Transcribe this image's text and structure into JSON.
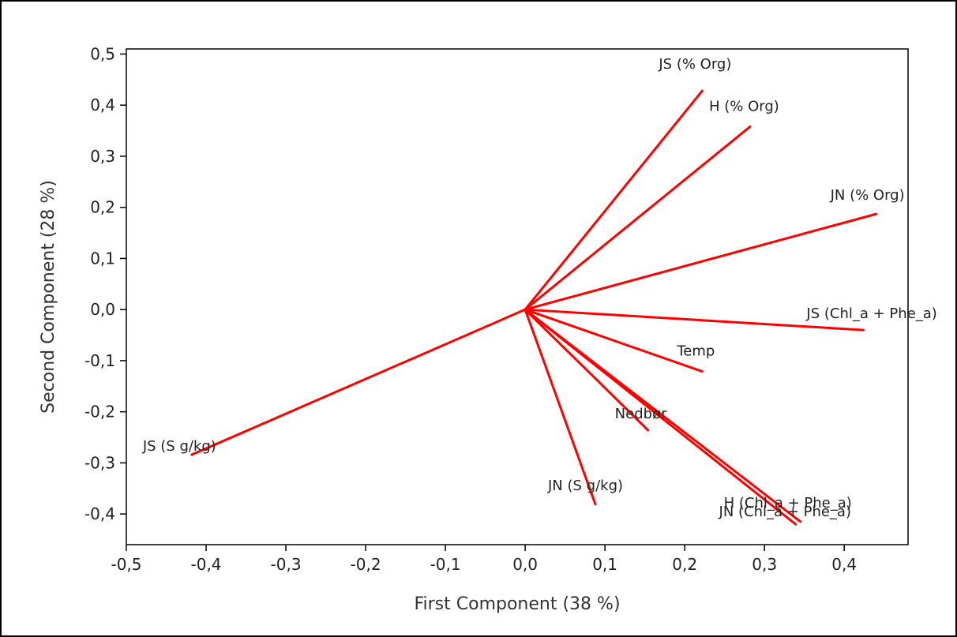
{
  "chart_data": {
    "type": "line",
    "title": "",
    "xlabel": "First Component (38 %)",
    "ylabel": "Second Component (28 %)",
    "xlim": [
      -0.5,
      0.48
    ],
    "ylim": [
      -0.46,
      0.51
    ],
    "xticks": [
      "-0,5",
      "-0,4",
      "-0,3",
      "-0,2",
      "-0,1",
      "0,0",
      "0,1",
      "0,2",
      "0,3",
      "0,4"
    ],
    "yticks": [
      "0,5",
      "0,4",
      "0,3",
      "0,2",
      "0,1",
      "0,0",
      "-0,1",
      "-0,2",
      "-0,3",
      "-0,4"
    ],
    "grid": false,
    "line_color": "#ff0000",
    "series": [
      {
        "name": "JS (% Org)",
        "x": [
          0,
          0.222
        ],
        "y": [
          0,
          0.428
        ]
      },
      {
        "name": "H (% Org)",
        "x": [
          0,
          0.282
        ],
        "y": [
          0,
          0.358
        ]
      },
      {
        "name": "JN (% Org)",
        "x": [
          0,
          0.44
        ],
        "y": [
          0,
          0.187
        ]
      },
      {
        "name": "JS (Chl_a + Phe_a)",
        "x": [
          0,
          0.424
        ],
        "y": [
          0,
          -0.04
        ]
      },
      {
        "name": "Temp",
        "x": [
          0,
          0.222
        ],
        "y": [
          0,
          -0.121
        ]
      },
      {
        "name": "Nedbør",
        "x": [
          0,
          0.154
        ],
        "y": [
          0,
          -0.236
        ]
      },
      {
        "name": "JN (S g/kg)",
        "x": [
          0,
          0.088
        ],
        "y": [
          0,
          -0.381
        ]
      },
      {
        "name": "H (Chl_a + Phe_a)",
        "x": [
          0,
          0.345
        ],
        "y": [
          0,
          -0.415
        ]
      },
      {
        "name": "JN (Chl_a + Phe_a)",
        "x": [
          0,
          0.339
        ],
        "y": [
          0,
          -0.42
        ]
      },
      {
        "name": "JS (S g/kg)",
        "x": [
          0,
          -0.418
        ],
        "y": [
          0,
          -0.284
        ]
      }
    ]
  }
}
